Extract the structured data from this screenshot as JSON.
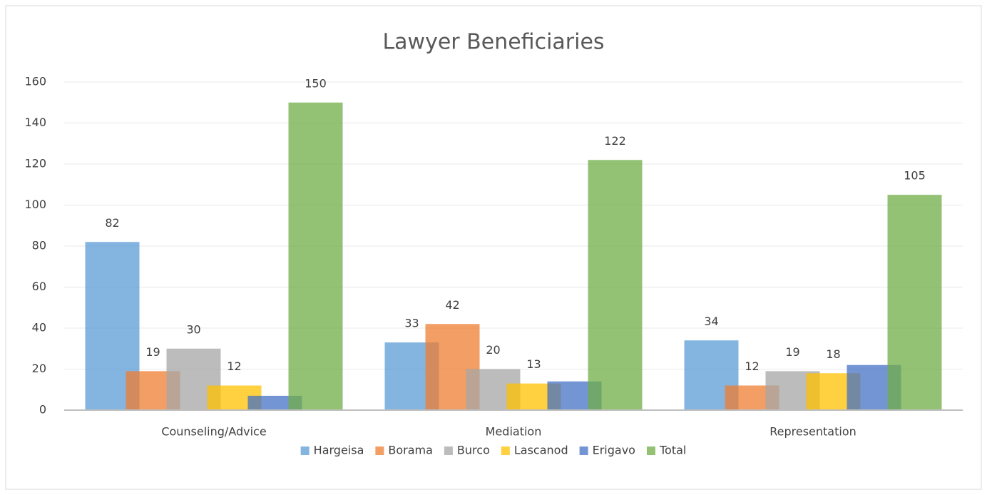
{
  "chart_data": {
    "type": "bar",
    "title": "Lawyer Beneficiaries",
    "categories": [
      "Counseling/Advice",
      "Mediation",
      "Representation"
    ],
    "series": [
      {
        "name": "Hargeisa",
        "color": "#5b9bd5",
        "values": [
          82,
          33,
          34
        ],
        "labels": true
      },
      {
        "name": "Borama",
        "color": "#ed7d31",
        "values": [
          19,
          42,
          12
        ],
        "labels": true
      },
      {
        "name": "Burco",
        "color": "#a5a5a5",
        "values": [
          30,
          20,
          19
        ],
        "labels": true
      },
      {
        "name": "Lascanod",
        "color": "#ffc000",
        "values": [
          12,
          13,
          18
        ],
        "labels": true
      },
      {
        "name": "Erigavo",
        "color": "#4472c4",
        "values": [
          7,
          14,
          22
        ],
        "labels": false
      },
      {
        "name": "Total",
        "color": "#70ad47",
        "values": [
          150,
          122,
          105
        ],
        "labels": true
      }
    ],
    "ylim": [
      0,
      160
    ],
    "yticks": [
      0,
      20,
      40,
      60,
      80,
      100,
      120,
      140,
      160
    ],
    "grid": true,
    "legend": "bottom"
  }
}
